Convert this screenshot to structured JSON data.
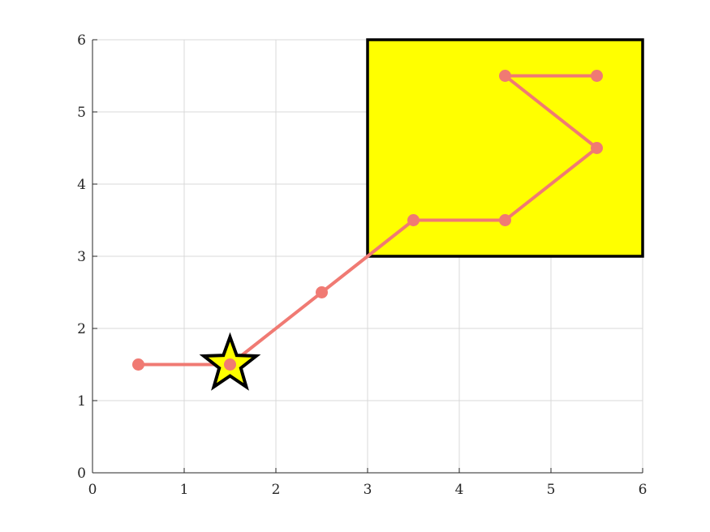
{
  "chart_data": {
    "type": "line",
    "title": "",
    "xlabel": "",
    "ylabel": "",
    "xlim": [
      0,
      6
    ],
    "ylim": [
      0,
      6
    ],
    "xticks": [
      "0",
      "1",
      "2",
      "3",
      "4",
      "5",
      "6"
    ],
    "yticks": [
      "0",
      "1",
      "2",
      "3",
      "4",
      "5",
      "6"
    ],
    "grid": true,
    "series": [
      {
        "color": "#f07a73",
        "marker": "circle",
        "x": [
          0.5,
          1.5,
          2.5,
          3.5,
          4.5,
          5.5,
          4.5,
          5.5
        ],
        "y": [
          1.5,
          1.5,
          2.5,
          3.5,
          3.5,
          4.5,
          5.5,
          5.5
        ]
      }
    ],
    "annotations": [
      {
        "kind": "rectangle",
        "x0": 3,
        "y0": 3,
        "x1": 6,
        "y1": 6,
        "fill": "#ffff00",
        "stroke": "#000000"
      },
      {
        "kind": "star",
        "x": 1.5,
        "y": 1.5,
        "fill": "#ffff00",
        "stroke": "#000000"
      }
    ]
  }
}
